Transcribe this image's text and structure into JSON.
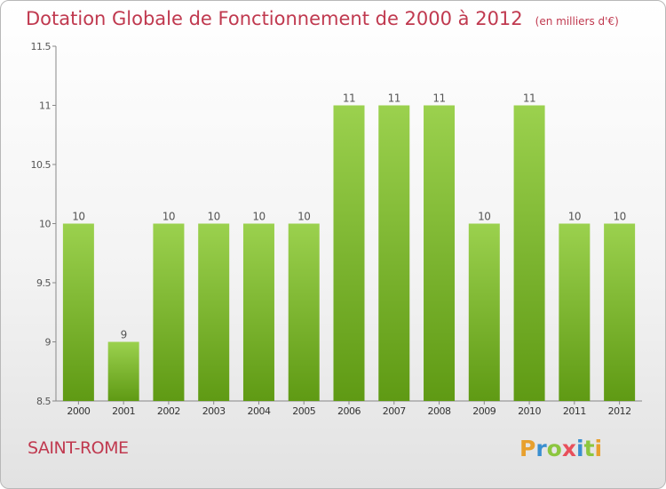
{
  "title": "Dotation Globale de Fonctionnement de 2000 à 2012",
  "unit": "(en milliers d'€)",
  "place": "SAINT-ROME",
  "logo": {
    "letters": [
      "P",
      "r",
      "o",
      "x",
      "i",
      "t",
      "i"
    ],
    "colors": [
      "#e8a02e",
      "#3a8fd0",
      "#8cc63f",
      "#e8505b",
      "#3a8fd0",
      "#8cc63f",
      "#e8a02e"
    ]
  },
  "colors": {
    "bar_top": "#9bd14e",
    "bar_bottom": "#5f9a14",
    "title": "#c0394f"
  },
  "chart_data": {
    "type": "bar",
    "categories": [
      "2000",
      "2001",
      "2002",
      "2003",
      "2004",
      "2005",
      "2006",
      "2007",
      "2008",
      "2009",
      "2010",
      "2011",
      "2012"
    ],
    "values": [
      10,
      9,
      10,
      10,
      10,
      10,
      11,
      11,
      11,
      10,
      11,
      10,
      10
    ],
    "value_labels": [
      "10",
      "9",
      "10",
      "10",
      "10",
      "10",
      "11",
      "11",
      "11",
      "10",
      "11",
      "10",
      "10"
    ],
    "y_ticks": [
      "8.5",
      "9",
      "9.5",
      "10",
      "10.5",
      "11",
      "11.5"
    ],
    "ylim": [
      8.5,
      11.5
    ],
    "grid": false,
    "legend": "none"
  }
}
